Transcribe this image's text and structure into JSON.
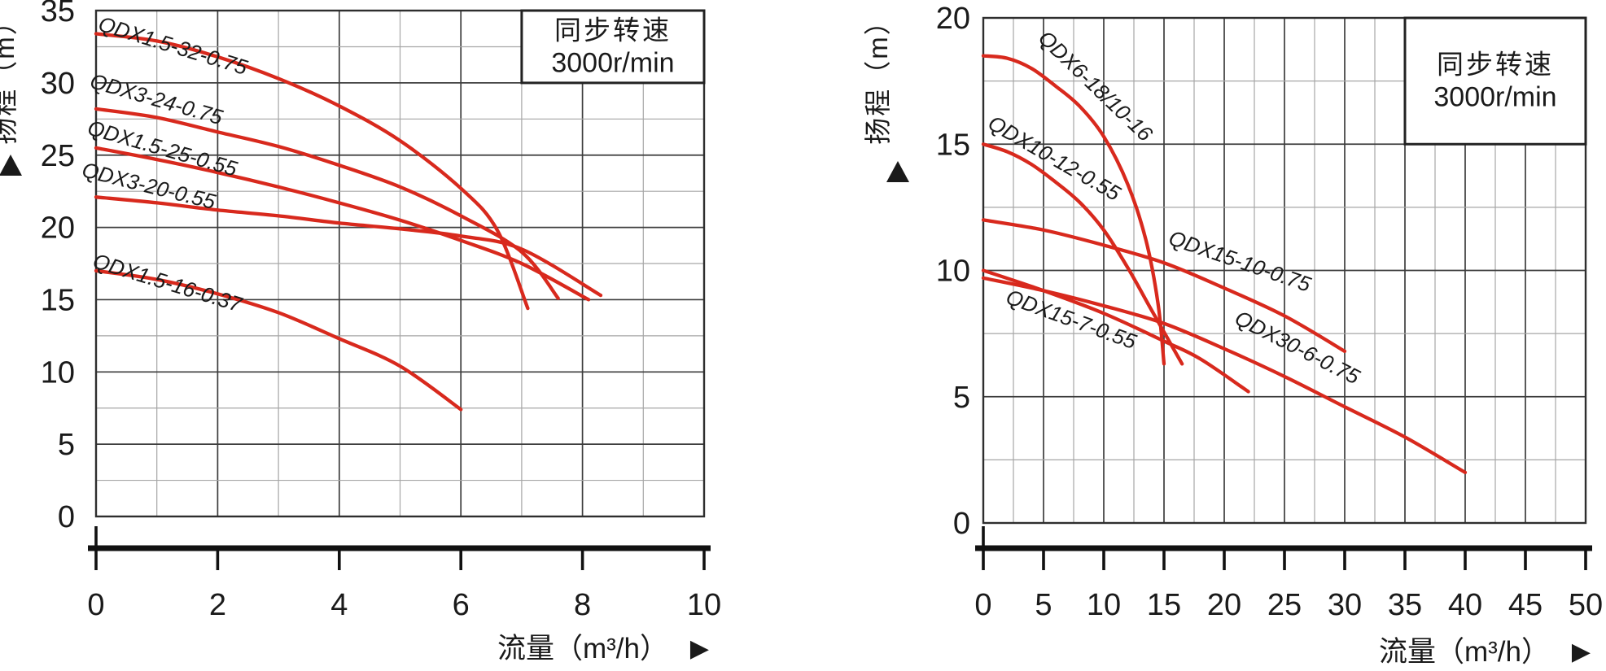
{
  "figure": {
    "background": "#ffffff",
    "curve_color": "#d8291d",
    "grid_major_color": "#3d3d3d",
    "grid_minor_color": "#a6a6a6",
    "border_color": "#2e2e2e",
    "axis_color": "#111111",
    "text_color": "#1a1a1a"
  },
  "chart_data": [
    {
      "type": "line",
      "title": "同步转速 3000r/min",
      "rpm_box": {
        "line1": "同步转速",
        "line2": "3000r/min"
      },
      "xlabel": "流量（m³/h）",
      "ylabel": "扬程（m）",
      "x_axis_arrow": "▶",
      "y_axis_arrow": "▲",
      "xlim": [
        0,
        10
      ],
      "ylim": [
        0,
        35
      ],
      "x_ticks": [
        0,
        2,
        4,
        6,
        8,
        10
      ],
      "y_ticks": [
        0,
        5,
        10,
        15,
        20,
        25,
        30,
        35
      ],
      "x_minor_step": 1,
      "y_minor_step": 2.5,
      "grid": true,
      "legend": "labels-on-curves",
      "series": [
        {
          "name": "QDX1.5-32-0.75",
          "points": [
            [
              0,
              33.4
            ],
            [
              1,
              32.9
            ],
            [
              2,
              31.8
            ],
            [
              3,
              30.3
            ],
            [
              4,
              28.4
            ],
            [
              5,
              26.0
            ],
            [
              6,
              22.7
            ],
            [
              6.6,
              19.8
            ],
            [
              7.1,
              14.4
            ]
          ],
          "label": {
            "x": 1.23,
            "y": 32.1,
            "rot": 17
          }
        },
        {
          "name": "QDX3-24-0.75",
          "points": [
            [
              0,
              28.2
            ],
            [
              1,
              27.6
            ],
            [
              2,
              26.6
            ],
            [
              3,
              25.6
            ],
            [
              4,
              24.3
            ],
            [
              5,
              22.8
            ],
            [
              6,
              20.8
            ],
            [
              7,
              18.3
            ],
            [
              7.6,
              15.1
            ]
          ],
          "label": {
            "x": 0.96,
            "y": 28.4,
            "rot": 16
          }
        },
        {
          "name": "QDX1.5-25-0.55",
          "points": [
            [
              0,
              25.5
            ],
            [
              1,
              24.7
            ],
            [
              2,
              23.8
            ],
            [
              3,
              22.8
            ],
            [
              4,
              21.7
            ],
            [
              5,
              20.5
            ],
            [
              6,
              19.1
            ],
            [
              7,
              17.5
            ],
            [
              8.1,
              15.0
            ]
          ],
          "label": {
            "x": 1.06,
            "y": 25.0,
            "rot": 16
          }
        },
        {
          "name": "QDX3-20-0.55",
          "points": [
            [
              0,
              22.1
            ],
            [
              1,
              21.7
            ],
            [
              2,
              21.2
            ],
            [
              3,
              20.8
            ],
            [
              4,
              20.3
            ],
            [
              5,
              19.9
            ],
            [
              6,
              19.4
            ],
            [
              7,
              18.5
            ],
            [
              8.3,
              15.3
            ]
          ],
          "label": {
            "x": 0.84,
            "y": 22.4,
            "rot": 14
          }
        },
        {
          "name": "QDX1.5-16-0.37",
          "points": [
            [
              0,
              17.0
            ],
            [
              1,
              16.4
            ],
            [
              2,
              15.4
            ],
            [
              3,
              14.1
            ],
            [
              4,
              12.3
            ],
            [
              5,
              10.4
            ],
            [
              6,
              7.4
            ]
          ],
          "label": {
            "x": 1.14,
            "y": 15.7,
            "rot": 17
          }
        }
      ]
    },
    {
      "type": "line",
      "title": "同步转速 3000r/min",
      "rpm_box": {
        "line1": "同步转速",
        "line2": "3000r/min"
      },
      "xlabel": "流量（m³/h）",
      "ylabel": "扬程（m）",
      "x_axis_arrow": "▶",
      "y_axis_arrow": "▲",
      "xlim": [
        0,
        50
      ],
      "ylim": [
        0,
        20
      ],
      "x_ticks": [
        0,
        5,
        10,
        15,
        20,
        25,
        30,
        35,
        40,
        45,
        50
      ],
      "y_ticks": [
        0,
        5,
        10,
        15,
        20
      ],
      "x_minor_step": 2.5,
      "y_minor_step": 2.5,
      "grid": true,
      "legend": "labels-on-curves",
      "series": [
        {
          "name": "QDX6-18/10-16",
          "points": [
            [
              0,
              18.5
            ],
            [
              2,
              18.4
            ],
            [
              4,
              18.0
            ],
            [
              6,
              17.3
            ],
            [
              8,
              16.5
            ],
            [
              10,
              15.3
            ],
            [
              12,
              13.4
            ],
            [
              13.5,
              11.2
            ],
            [
              14.5,
              8.7
            ],
            [
              15,
              6.3
            ]
          ],
          "label": {
            "x": 8.9,
            "y": 17.1,
            "rot": 44
          }
        },
        {
          "name": "QDX10-12-0.55",
          "points": [
            [
              0,
              15.0
            ],
            [
              2,
              14.7
            ],
            [
              4,
              14.2
            ],
            [
              6,
              13.5
            ],
            [
              8,
              12.7
            ],
            [
              10,
              11.6
            ],
            [
              12,
              10.1
            ],
            [
              14,
              8.4
            ],
            [
              16.5,
              6.3
            ]
          ],
          "label": {
            "x": 5.6,
            "y": 14.2,
            "rot": 30
          }
        },
        {
          "name": "QDX15-10-0.75",
          "points": [
            [
              0,
              12.0
            ],
            [
              5,
              11.6
            ],
            [
              10,
              11.0
            ],
            [
              15,
              10.3
            ],
            [
              20,
              9.3
            ],
            [
              25,
              8.2
            ],
            [
              30,
              6.8
            ]
          ],
          "label": {
            "x": 21.1,
            "y": 10.1,
            "rot": 19
          }
        },
        {
          "name": "QDX15-7-0.55",
          "points": [
            [
              0,
              10.0
            ],
            [
              5,
              9.2
            ],
            [
              10,
              8.3
            ],
            [
              15,
              7.2
            ],
            [
              18,
              6.5
            ],
            [
              22,
              5.2
            ]
          ],
          "label": {
            "x": 7.1,
            "y": 7.8,
            "rot": 20
          }
        },
        {
          "name": "QDX30-6-0.75",
          "points": [
            [
              0,
              9.7
            ],
            [
              5,
              9.2
            ],
            [
              10,
              8.6
            ],
            [
              15,
              7.9
            ],
            [
              20,
              6.9
            ],
            [
              25,
              5.8
            ],
            [
              30,
              4.6
            ],
            [
              35,
              3.4
            ],
            [
              40,
              2.0
            ]
          ],
          "label": {
            "x": 25.8,
            "y": 6.7,
            "rot": 27
          }
        }
      ]
    }
  ]
}
